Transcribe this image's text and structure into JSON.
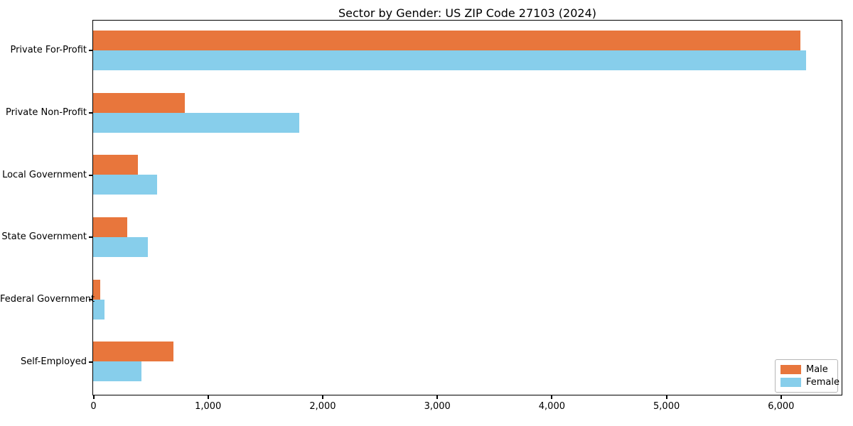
{
  "title": "Sector by Gender: US ZIP Code 27103 (2024)",
  "chart_data": {
    "type": "bar",
    "orientation": "horizontal",
    "title": "Sector by Gender: US ZIP Code 27103 (2024)",
    "categories": [
      "Private For-Profit",
      "Private Non-Profit",
      "Local Government",
      "State Government",
      "Federal Government",
      "Self-Employed"
    ],
    "series": [
      {
        "name": "Male",
        "color": "#E8763C",
        "values": [
          6170,
          800,
          390,
          300,
          60,
          700
        ]
      },
      {
        "name": "Female",
        "color": "#87CEEB",
        "values": [
          6220,
          1800,
          560,
          480,
          100,
          420
        ]
      }
    ],
    "xlabel": "",
    "ylabel": "",
    "xlim": [
      0,
      6525
    ],
    "xticks": [
      0,
      1000,
      2000,
      3000,
      4000,
      5000,
      6000
    ],
    "xtick_labels": [
      "0",
      "1,000",
      "2,000",
      "3,000",
      "4,000",
      "5,000",
      "6,000"
    ],
    "grid": false,
    "legend_position": "lower right"
  }
}
